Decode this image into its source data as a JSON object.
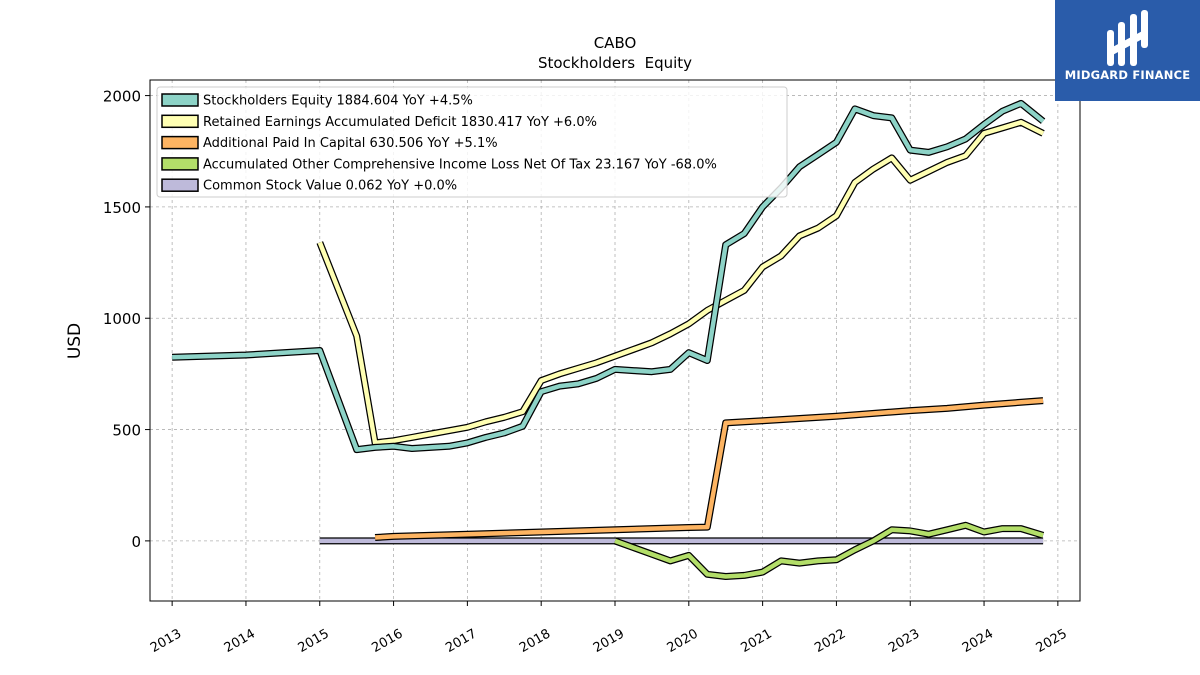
{
  "brand": {
    "name": "MIDGARD FINANCE",
    "bg_color": "#2a5caa"
  },
  "chart_data": {
    "type": "line",
    "title": "CABO",
    "subtitle": "Stockholders  Equity",
    "ylabel": "USD",
    "xlabel": "",
    "ylim": [
      -270,
      2070
    ],
    "xlim": [
      2012.7,
      2025.3
    ],
    "yticks": [
      0,
      500,
      1000,
      1500,
      2000
    ],
    "xticks": [
      2013,
      2014,
      2015,
      2016,
      2017,
      2018,
      2019,
      2020,
      2021,
      2022,
      2023,
      2024,
      2025
    ],
    "grid": true,
    "legend_position": "top-left",
    "series": [
      {
        "name": "Stockholders Equity",
        "legend": "Stockholders Equity  1884.604 YoY +4.5%",
        "color": "#8dd3c7",
        "points": [
          [
            2013.0,
            825
          ],
          [
            2014.0,
            835
          ],
          [
            2015.0,
            855
          ],
          [
            2015.5,
            410
          ],
          [
            2015.75,
            420
          ],
          [
            2016.0,
            425
          ],
          [
            2016.25,
            415
          ],
          [
            2016.5,
            420
          ],
          [
            2016.75,
            425
          ],
          [
            2017.0,
            440
          ],
          [
            2017.25,
            465
          ],
          [
            2017.5,
            485
          ],
          [
            2017.75,
            515
          ],
          [
            2018.0,
            670
          ],
          [
            2018.25,
            695
          ],
          [
            2018.5,
            705
          ],
          [
            2018.75,
            730
          ],
          [
            2019.0,
            770
          ],
          [
            2019.25,
            765
          ],
          [
            2019.5,
            760
          ],
          [
            2019.75,
            770
          ],
          [
            2020.0,
            845
          ],
          [
            2020.25,
            810
          ],
          [
            2020.5,
            1330
          ],
          [
            2020.75,
            1380
          ],
          [
            2021.0,
            1500
          ],
          [
            2021.25,
            1585
          ],
          [
            2021.5,
            1680
          ],
          [
            2021.75,
            1735
          ],
          [
            2022.0,
            1790
          ],
          [
            2022.25,
            1940
          ],
          [
            2022.5,
            1910
          ],
          [
            2022.75,
            1900
          ],
          [
            2023.0,
            1755
          ],
          [
            2023.25,
            1745
          ],
          [
            2023.5,
            1770
          ],
          [
            2023.75,
            1805
          ],
          [
            2024.0,
            1870
          ],
          [
            2024.25,
            1930
          ],
          [
            2024.5,
            1965
          ],
          [
            2024.8,
            1885
          ]
        ]
      },
      {
        "name": "Retained Earnings Accumulated Deficit",
        "legend": "Retained Earnings Accumulated Deficit  1830.417 YoY +6.0%",
        "color": "#ffffb3",
        "points": [
          [
            2015.0,
            1340
          ],
          [
            2015.5,
            920
          ],
          [
            2015.75,
            440
          ],
          [
            2016.0,
            450
          ],
          [
            2016.25,
            465
          ],
          [
            2016.5,
            480
          ],
          [
            2016.75,
            495
          ],
          [
            2017.0,
            510
          ],
          [
            2017.25,
            535
          ],
          [
            2017.5,
            555
          ],
          [
            2017.75,
            580
          ],
          [
            2018.0,
            720
          ],
          [
            2018.25,
            750
          ],
          [
            2018.5,
            775
          ],
          [
            2018.75,
            800
          ],
          [
            2019.0,
            830
          ],
          [
            2019.25,
            860
          ],
          [
            2019.5,
            890
          ],
          [
            2019.75,
            930
          ],
          [
            2020.0,
            975
          ],
          [
            2020.25,
            1035
          ],
          [
            2020.5,
            1080
          ],
          [
            2020.75,
            1125
          ],
          [
            2021.0,
            1230
          ],
          [
            2021.25,
            1280
          ],
          [
            2021.5,
            1370
          ],
          [
            2021.75,
            1405
          ],
          [
            2022.0,
            1460
          ],
          [
            2022.25,
            1610
          ],
          [
            2022.5,
            1670
          ],
          [
            2022.75,
            1720
          ],
          [
            2023.0,
            1620
          ],
          [
            2023.25,
            1660
          ],
          [
            2023.5,
            1700
          ],
          [
            2023.75,
            1730
          ],
          [
            2024.0,
            1830
          ],
          [
            2024.25,
            1855
          ],
          [
            2024.5,
            1880
          ],
          [
            2024.8,
            1830
          ]
        ]
      },
      {
        "name": "Additional Paid In Capital",
        "legend": "Additional Paid In Capital  630.506 YoY +5.1%",
        "color": "#fdb462",
        "points": [
          [
            2015.75,
            15
          ],
          [
            2016.0,
            20
          ],
          [
            2017.0,
            30
          ],
          [
            2018.0,
            40
          ],
          [
            2019.0,
            50
          ],
          [
            2020.0,
            60
          ],
          [
            2020.25,
            62
          ],
          [
            2020.5,
            530
          ],
          [
            2021.0,
            540
          ],
          [
            2022.0,
            560
          ],
          [
            2023.0,
            585
          ],
          [
            2023.5,
            595
          ],
          [
            2024.0,
            610
          ],
          [
            2024.8,
            630
          ]
        ]
      },
      {
        "name": "Accumulated Other Comprehensive Income Loss Net Of Tax",
        "legend": "Accumulated Other Comprehensive Income Loss Net Of Tax  23.167 YoY -68.0%",
        "color": "#b3de69",
        "points": [
          [
            2019.0,
            0
          ],
          [
            2019.25,
            -30
          ],
          [
            2019.5,
            -60
          ],
          [
            2019.75,
            -90
          ],
          [
            2020.0,
            -65
          ],
          [
            2020.25,
            -150
          ],
          [
            2020.5,
            -160
          ],
          [
            2020.75,
            -155
          ],
          [
            2021.0,
            -140
          ],
          [
            2021.25,
            -90
          ],
          [
            2021.5,
            -100
          ],
          [
            2021.75,
            -90
          ],
          [
            2022.0,
            -85
          ],
          [
            2022.25,
            -40
          ],
          [
            2022.5,
            0
          ],
          [
            2022.75,
            50
          ],
          [
            2023.0,
            45
          ],
          [
            2023.25,
            30
          ],
          [
            2023.5,
            50
          ],
          [
            2023.75,
            70
          ],
          [
            2024.0,
            40
          ],
          [
            2024.25,
            55
          ],
          [
            2024.5,
            55
          ],
          [
            2024.8,
            25
          ]
        ]
      },
      {
        "name": "Common Stock Value",
        "legend": "Common Stock Value  0.062 YoY +0.0%",
        "color": "#bebada",
        "points": [
          [
            2015.0,
            0
          ],
          [
            2024.8,
            0
          ]
        ]
      }
    ]
  }
}
